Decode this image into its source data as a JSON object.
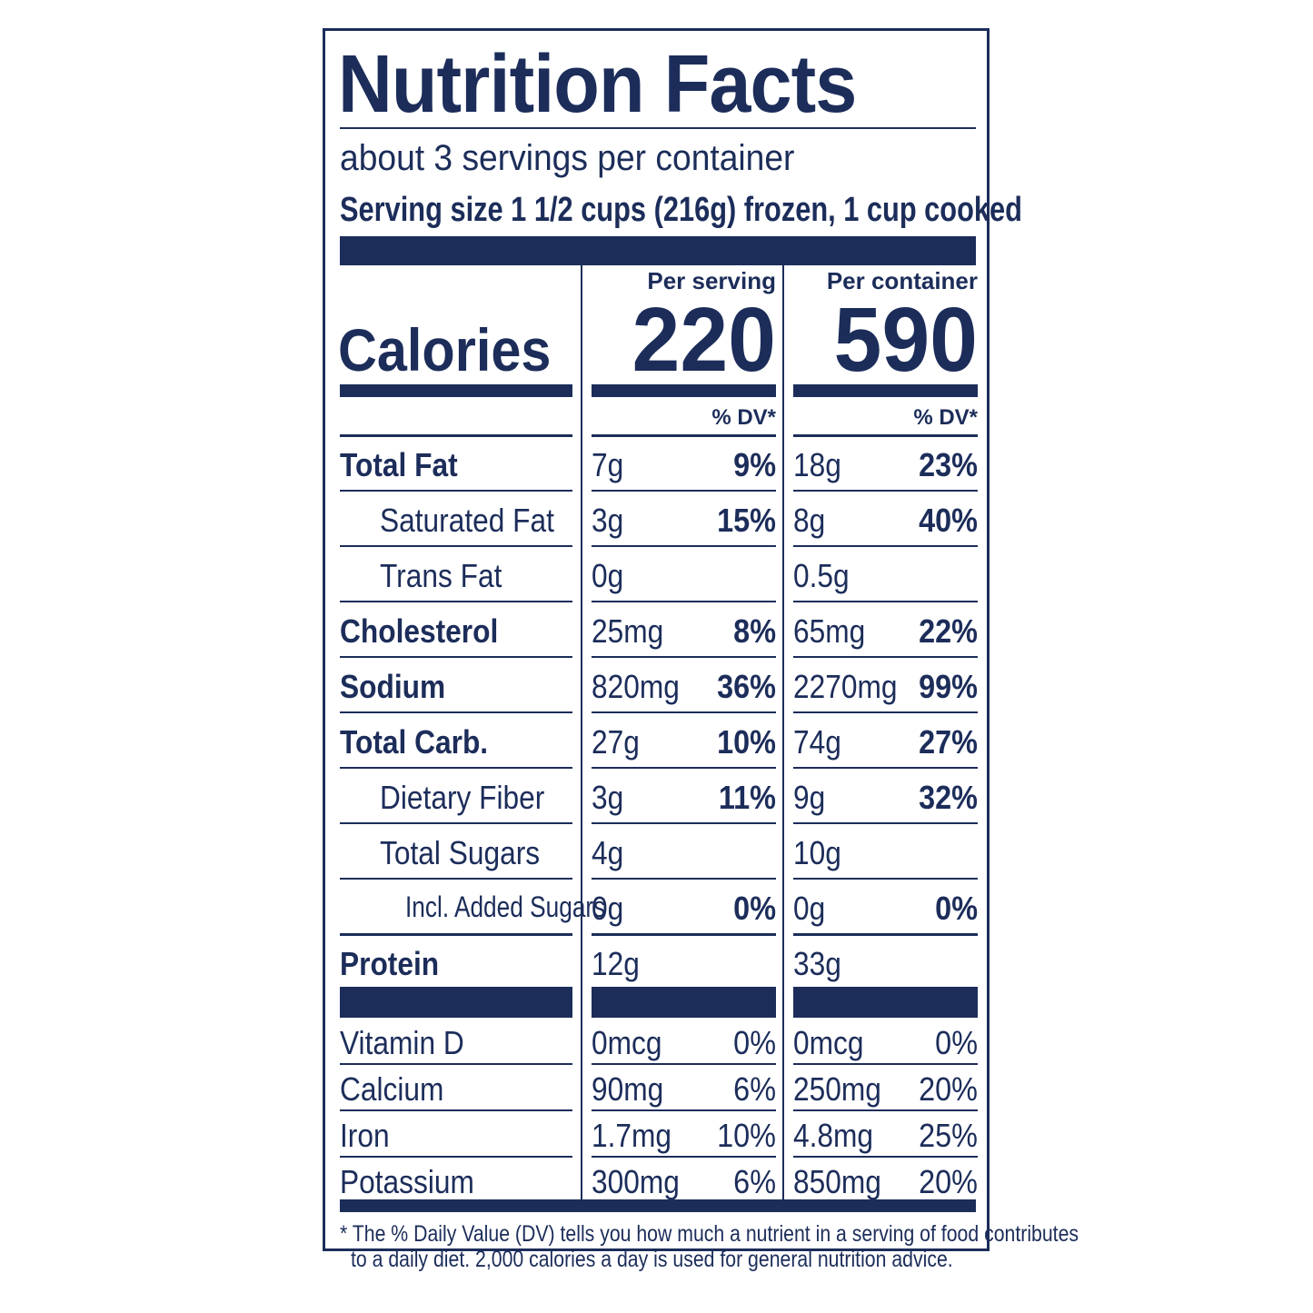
{
  "title": "Nutrition Facts",
  "servings_per_container": "about 3 servings per container",
  "serving_size": "Serving size 1 1/2 cups (216g) frozen, 1 cup cooked",
  "columns": {
    "per_serving": "Per serving",
    "per_container": "Per container",
    "dv": "% DV*"
  },
  "calories": {
    "label": "Calories",
    "per_serving": "220",
    "per_container": "590"
  },
  "nutrients": [
    {
      "name": "Total Fat",
      "serving_amt": "7g",
      "serving_dv": "9%",
      "container_amt": "18g",
      "container_dv": "23%"
    },
    {
      "name": "Saturated Fat",
      "serving_amt": "3g",
      "serving_dv": "15%",
      "container_amt": "8g",
      "container_dv": "40%"
    },
    {
      "name": "Trans Fat",
      "serving_amt": "0g",
      "serving_dv": "",
      "container_amt": "0.5g",
      "container_dv": ""
    },
    {
      "name": "Cholesterol",
      "serving_amt": "25mg",
      "serving_dv": "8%",
      "container_amt": "65mg",
      "container_dv": "22%"
    },
    {
      "name": "Sodium",
      "serving_amt": "820mg",
      "serving_dv": "36%",
      "container_amt": "2270mg",
      "container_dv": "99%"
    },
    {
      "name": "Total Carb.",
      "serving_amt": "27g",
      "serving_dv": "10%",
      "container_amt": "74g",
      "container_dv": "27%"
    },
    {
      "name": "Dietary Fiber",
      "serving_amt": "3g",
      "serving_dv": "11%",
      "container_amt": "9g",
      "container_dv": "32%"
    },
    {
      "name": "Total Sugars",
      "serving_amt": "4g",
      "serving_dv": "",
      "container_amt": "10g",
      "container_dv": ""
    },
    {
      "name": "Incl. Added Sugars",
      "serving_amt": "0g",
      "serving_dv": "0%",
      "container_amt": "0g",
      "container_dv": "0%"
    },
    {
      "name": "Protein",
      "serving_amt": "12g",
      "serving_dv": "",
      "container_amt": "33g",
      "container_dv": ""
    }
  ],
  "vitamins": [
    {
      "name": "Vitamin D",
      "serving_amt": "0mcg",
      "serving_dv": "0%",
      "container_amt": "0mcg",
      "container_dv": "0%"
    },
    {
      "name": "Calcium",
      "serving_amt": "90mg",
      "serving_dv": "6%",
      "container_amt": "250mg",
      "container_dv": "20%"
    },
    {
      "name": "Iron",
      "serving_amt": "1.7mg",
      "serving_dv": "10%",
      "container_amt": "4.8mg",
      "container_dv": "25%"
    },
    {
      "name": "Potassium",
      "serving_amt": "300mg",
      "serving_dv": "6%",
      "container_amt": "850mg",
      "container_dv": "20%"
    }
  ],
  "footnote": {
    "line1": "* The % Daily Value (DV) tells you how much a nutrient in a serving of food contributes",
    "line2": "to a daily diet. 2,000 calories a day is used for general nutrition advice."
  },
  "colors": {
    "ink": "#1c2d5a",
    "background": "#ffffff"
  }
}
